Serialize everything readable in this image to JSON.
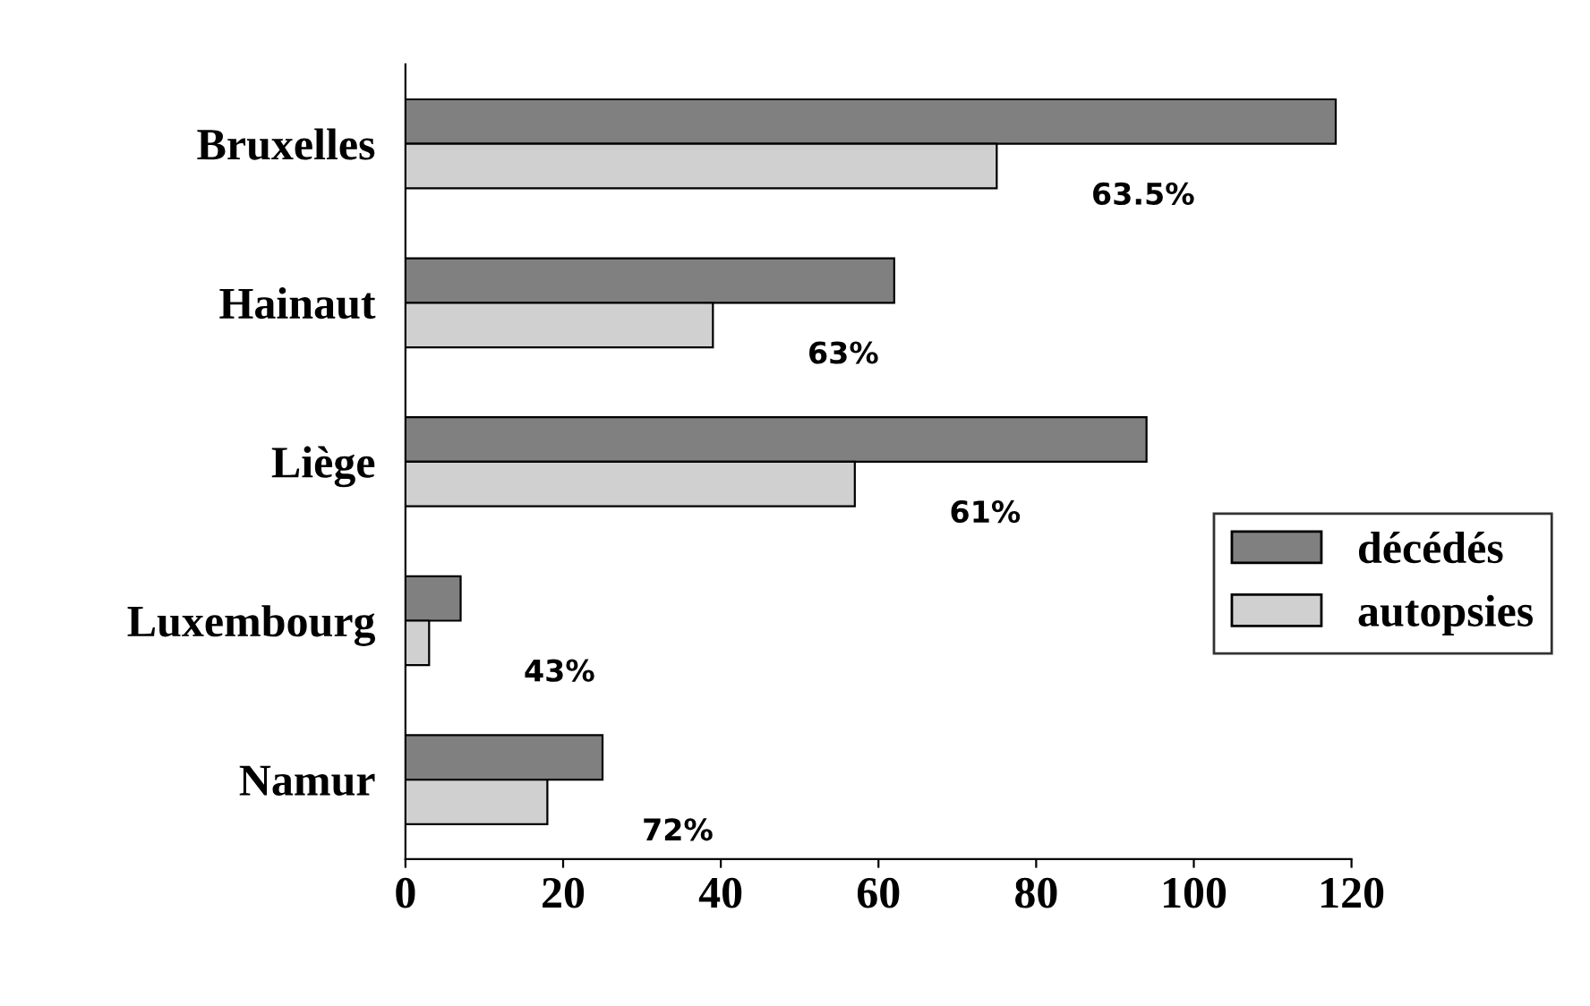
{
  "chart_data": {
    "type": "bar",
    "orientation": "horizontal",
    "categories": [
      "Bruxelles",
      "Hainaut",
      "Liège",
      "Luxembourg",
      "Namur"
    ],
    "series": [
      {
        "name": "décédés",
        "color": "#808080",
        "values": [
          118,
          62,
          94,
          7,
          25
        ]
      },
      {
        "name": "autopsies",
        "color": "#d0d0d0",
        "values": [
          75,
          39,
          57,
          3,
          18
        ]
      }
    ],
    "xlim": [
      0,
      120
    ],
    "xticks": [
      0,
      20,
      40,
      60,
      80,
      100,
      120
    ],
    "grid": false,
    "legend": "right",
    "annotations": [
      "63.5%",
      "63%",
      "61%",
      "43%",
      "72%"
    ]
  }
}
